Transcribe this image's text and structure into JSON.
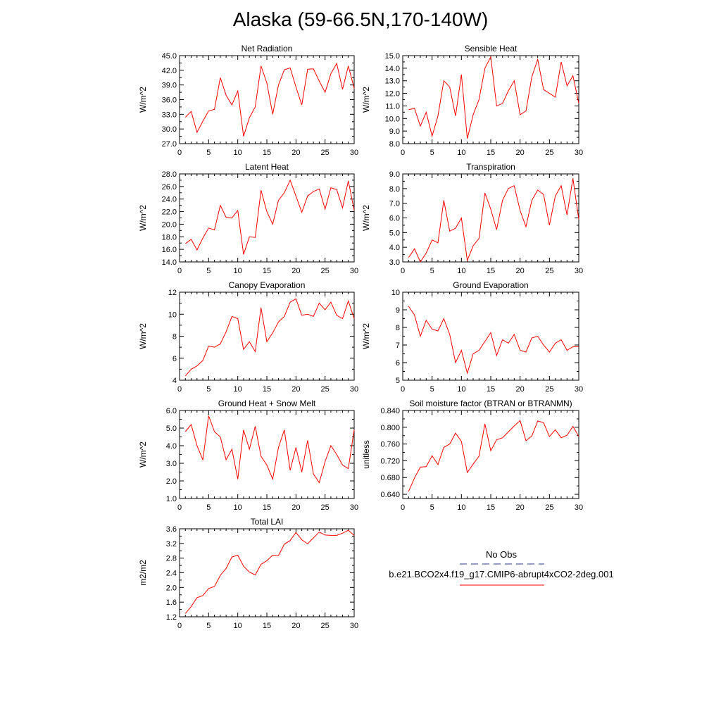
{
  "title": "Alaska (59-66.5N,170-140W)",
  "legend": {
    "entries": [
      {
        "label": "No Obs",
        "color": "#2b3a8f",
        "style": "dashed"
      },
      {
        "label": "b.e21.BCO2x4.f19_g17.CMIP6-abrupt4xCO2-2deg.001",
        "color": "#ff0000",
        "style": "solid"
      }
    ]
  },
  "chart_data": [
    {
      "type": "line",
      "title": "Net Radiation",
      "xlabel": "",
      "ylabel": "W/m^2",
      "xlim": [
        0,
        30
      ],
      "ylim": [
        27,
        45
      ],
      "grid": false,
      "tick_decimals": 1,
      "xticks": [
        0,
        5,
        10,
        15,
        20,
        25,
        30
      ],
      "yticks": [
        27.0,
        30.0,
        33.0,
        36.0,
        39.0,
        42.0,
        45.0
      ],
      "series": [
        {
          "color": "#ff0000",
          "x": [
            1,
            2,
            3,
            4,
            5,
            6,
            7,
            8,
            9,
            10,
            11,
            12,
            13,
            14,
            15,
            16,
            17,
            18,
            19,
            20,
            21,
            22,
            23,
            24,
            25,
            26,
            27,
            28,
            29,
            30
          ],
          "values": [
            32.4,
            33.6,
            29.3,
            31.6,
            33.7,
            34.0,
            40.5,
            36.9,
            34.9,
            37.8,
            28.5,
            32.3,
            34.5,
            42.9,
            39.4,
            33.0,
            39.0,
            42.1,
            42.5,
            38.6,
            34.9,
            42.2,
            42.3,
            39.8,
            37.5,
            41.3,
            43.4,
            38.1,
            42.9,
            38.3
          ]
        }
      ]
    },
    {
      "type": "line",
      "title": "Sensible Heat",
      "xlabel": "",
      "ylabel": "W/m^2",
      "xlim": [
        0,
        30
      ],
      "ylim": [
        8,
        15
      ],
      "grid": false,
      "tick_decimals": 1,
      "xticks": [
        0,
        5,
        10,
        15,
        20,
        25,
        30
      ],
      "yticks": [
        8.0,
        9.0,
        10.0,
        11.0,
        12.0,
        13.0,
        14.0,
        15.0
      ],
      "series": [
        {
          "color": "#ff0000",
          "x": [
            1,
            2,
            3,
            4,
            5,
            6,
            7,
            8,
            9,
            10,
            11,
            12,
            13,
            14,
            15,
            16,
            17,
            18,
            19,
            20,
            21,
            22,
            23,
            24,
            25,
            26,
            27,
            28,
            29,
            30
          ],
          "values": [
            10.7,
            10.8,
            9.4,
            10.5,
            8.6,
            10.2,
            13.0,
            12.5,
            10.2,
            13.5,
            8.4,
            10.3,
            11.5,
            14.0,
            14.9,
            11.0,
            11.2,
            12.2,
            13.0,
            10.3,
            10.6,
            13.3,
            14.7,
            12.3,
            12.0,
            11.7,
            14.5,
            12.6,
            13.4,
            11.2
          ]
        }
      ]
    },
    {
      "type": "line",
      "title": "Latent Heat",
      "xlabel": "",
      "ylabel": "W/m^2",
      "xlim": [
        0,
        30
      ],
      "ylim": [
        14,
        28
      ],
      "grid": false,
      "tick_decimals": 1,
      "xticks": [
        0,
        5,
        10,
        15,
        20,
        25,
        30
      ],
      "yticks": [
        14.0,
        16.0,
        18.0,
        20.0,
        22.0,
        24.0,
        26.0,
        28.0
      ],
      "series": [
        {
          "color": "#ff0000",
          "x": [
            1,
            2,
            3,
            4,
            5,
            6,
            7,
            8,
            9,
            10,
            11,
            12,
            13,
            14,
            15,
            16,
            17,
            18,
            19,
            20,
            21,
            22,
            23,
            24,
            25,
            26,
            27,
            28,
            29,
            30
          ],
          "values": [
            16.9,
            17.6,
            15.9,
            17.8,
            19.4,
            19.1,
            23.0,
            21.1,
            21.0,
            22.2,
            15.2,
            18.0,
            17.9,
            25.4,
            22.0,
            20.0,
            23.8,
            25.0,
            27.0,
            24.5,
            21.9,
            24.5,
            25.2,
            25.6,
            22.4,
            25.8,
            25.5,
            22.6,
            26.9,
            22.2
          ]
        }
      ]
    },
    {
      "type": "line",
      "title": "Transpiration",
      "xlabel": "",
      "ylabel": "W/m^2",
      "xlim": [
        0,
        30
      ],
      "ylim": [
        3,
        9
      ],
      "grid": false,
      "tick_decimals": 1,
      "xticks": [
        0,
        5,
        10,
        15,
        20,
        25,
        30
      ],
      "yticks": [
        3.0,
        4.0,
        5.0,
        6.0,
        7.0,
        8.0,
        9.0
      ],
      "series": [
        {
          "color": "#ff0000",
          "x": [
            1,
            2,
            3,
            4,
            5,
            6,
            7,
            8,
            9,
            10,
            11,
            12,
            13,
            14,
            15,
            16,
            17,
            18,
            19,
            20,
            21,
            22,
            23,
            24,
            25,
            26,
            27,
            28,
            29,
            30
          ],
          "values": [
            3.3,
            3.9,
            3.0,
            3.6,
            4.5,
            4.3,
            7.2,
            5.1,
            5.3,
            6.0,
            3.1,
            4.1,
            4.6,
            7.7,
            6.6,
            5.2,
            7.2,
            8.0,
            8.2,
            6.5,
            5.4,
            7.2,
            7.9,
            7.6,
            5.5,
            7.5,
            8.2,
            6.2,
            8.7,
            5.9
          ]
        }
      ]
    },
    {
      "type": "line",
      "title": "Canopy Evaporation",
      "xlabel": "",
      "ylabel": "W/m^2",
      "xlim": [
        0,
        30
      ],
      "ylim": [
        4,
        12
      ],
      "grid": false,
      "tick_decimals": 0,
      "xticks": [
        0,
        5,
        10,
        15,
        20,
        25,
        30
      ],
      "yticks": [
        4,
        6,
        8,
        10,
        12
      ],
      "series": [
        {
          "color": "#ff0000",
          "x": [
            1,
            2,
            3,
            4,
            5,
            6,
            7,
            8,
            9,
            10,
            11,
            12,
            13,
            14,
            15,
            16,
            17,
            18,
            19,
            20,
            21,
            22,
            23,
            24,
            25,
            26,
            27,
            28,
            29,
            30
          ],
          "values": [
            4.4,
            5.0,
            5.3,
            5.8,
            7.1,
            7.0,
            7.3,
            8.4,
            9.8,
            9.6,
            6.8,
            7.5,
            6.6,
            10.6,
            7.5,
            8.3,
            9.3,
            9.8,
            11.1,
            11.4,
            9.9,
            10.0,
            9.8,
            11.0,
            10.4,
            11.1,
            9.9,
            9.6,
            11.2,
            9.6
          ]
        }
      ]
    },
    {
      "type": "line",
      "title": "Ground Evaporation",
      "xlabel": "",
      "ylabel": "W/m^2",
      "xlim": [
        0,
        30
      ],
      "ylim": [
        5,
        10
      ],
      "grid": false,
      "tick_decimals": 0,
      "xticks": [
        0,
        5,
        10,
        15,
        20,
        25,
        30
      ],
      "yticks": [
        5,
        6,
        7,
        8,
        9,
        10
      ],
      "series": [
        {
          "color": "#ff0000",
          "x": [
            1,
            2,
            3,
            4,
            5,
            6,
            7,
            8,
            9,
            10,
            11,
            12,
            13,
            14,
            15,
            16,
            17,
            18,
            19,
            20,
            21,
            22,
            23,
            24,
            25,
            26,
            27,
            28,
            29,
            30
          ],
          "values": [
            9.2,
            8.7,
            7.5,
            8.4,
            7.9,
            7.8,
            8.5,
            7.6,
            6.0,
            6.7,
            5.4,
            6.5,
            6.7,
            7.2,
            7.7,
            6.4,
            7.3,
            7.1,
            7.6,
            6.7,
            6.6,
            7.4,
            7.5,
            7.0,
            6.6,
            7.1,
            7.3,
            6.7,
            6.9,
            6.9
          ]
        }
      ]
    },
    {
      "type": "line",
      "title": "Ground Heat + Snow Melt",
      "xlabel": "",
      "ylabel": "W/m^2",
      "xlim": [
        0,
        30
      ],
      "ylim": [
        1,
        6
      ],
      "grid": false,
      "tick_decimals": 1,
      "xticks": [
        0,
        5,
        10,
        15,
        20,
        25,
        30
      ],
      "yticks": [
        1.0,
        2.0,
        3.0,
        4.0,
        5.0,
        6.0
      ],
      "series": [
        {
          "color": "#ff0000",
          "x": [
            1,
            2,
            3,
            4,
            5,
            6,
            7,
            8,
            9,
            10,
            11,
            12,
            13,
            14,
            15,
            16,
            17,
            18,
            19,
            20,
            21,
            22,
            23,
            24,
            25,
            26,
            27,
            28,
            29,
            30
          ],
          "values": [
            4.8,
            5.2,
            4.0,
            3.2,
            5.7,
            4.8,
            4.5,
            3.2,
            3.8,
            2.1,
            4.9,
            3.8,
            5.1,
            3.4,
            2.9,
            2.1,
            3.9,
            4.9,
            2.6,
            3.9,
            2.5,
            4.3,
            2.4,
            1.9,
            3.1,
            4.0,
            3.5,
            2.9,
            2.7,
            4.9
          ]
        }
      ]
    },
    {
      "type": "line",
      "title": "Soil moisture factor (BTRAN or BTRANMN)",
      "xlabel": "",
      "ylabel": "unitless",
      "xlim": [
        0,
        30
      ],
      "ylim": [
        0.63,
        0.84
      ],
      "grid": false,
      "tick_decimals": 3,
      "xticks": [
        0,
        5,
        10,
        15,
        20,
        25,
        30
      ],
      "yticks": [
        0.64,
        0.68,
        0.72,
        0.76,
        0.8,
        0.84
      ],
      "series": [
        {
          "color": "#ff0000",
          "x": [
            1,
            2,
            3,
            4,
            5,
            6,
            7,
            8,
            9,
            10,
            11,
            12,
            13,
            14,
            15,
            16,
            17,
            18,
            19,
            20,
            21,
            22,
            23,
            24,
            25,
            26,
            27,
            28,
            29,
            30
          ],
          "values": [
            0.647,
            0.679,
            0.705,
            0.706,
            0.732,
            0.711,
            0.752,
            0.76,
            0.786,
            0.766,
            0.692,
            0.712,
            0.731,
            0.808,
            0.744,
            0.77,
            0.775,
            0.789,
            0.803,
            0.816,
            0.768,
            0.779,
            0.815,
            0.811,
            0.778,
            0.794,
            0.775,
            0.781,
            0.802,
            0.778
          ]
        }
      ]
    },
    {
      "type": "line",
      "title": "Total LAI",
      "xlabel": "",
      "ylabel": "m2/m2",
      "xlim": [
        0,
        30
      ],
      "ylim": [
        1.2,
        3.6
      ],
      "grid": false,
      "tick_decimals": 1,
      "xticks": [
        0,
        5,
        10,
        15,
        20,
        25,
        30
      ],
      "yticks": [
        1.2,
        1.6,
        2.0,
        2.4,
        2.8,
        3.2,
        3.6
      ],
      "series": [
        {
          "color": "#ff0000",
          "x": [
            1,
            2,
            3,
            4,
            5,
            6,
            7,
            8,
            9,
            10,
            11,
            12,
            13,
            14,
            15,
            16,
            17,
            18,
            19,
            20,
            21,
            22,
            23,
            24,
            25,
            26,
            27,
            28,
            29,
            30
          ],
          "values": [
            1.29,
            1.48,
            1.72,
            1.78,
            1.97,
            2.03,
            2.33,
            2.52,
            2.83,
            2.88,
            2.58,
            2.42,
            2.34,
            2.63,
            2.73,
            2.88,
            2.87,
            3.18,
            3.28,
            3.5,
            3.3,
            3.19,
            3.35,
            3.51,
            3.43,
            3.42,
            3.42,
            3.48,
            3.56,
            3.42
          ]
        }
      ]
    }
  ]
}
